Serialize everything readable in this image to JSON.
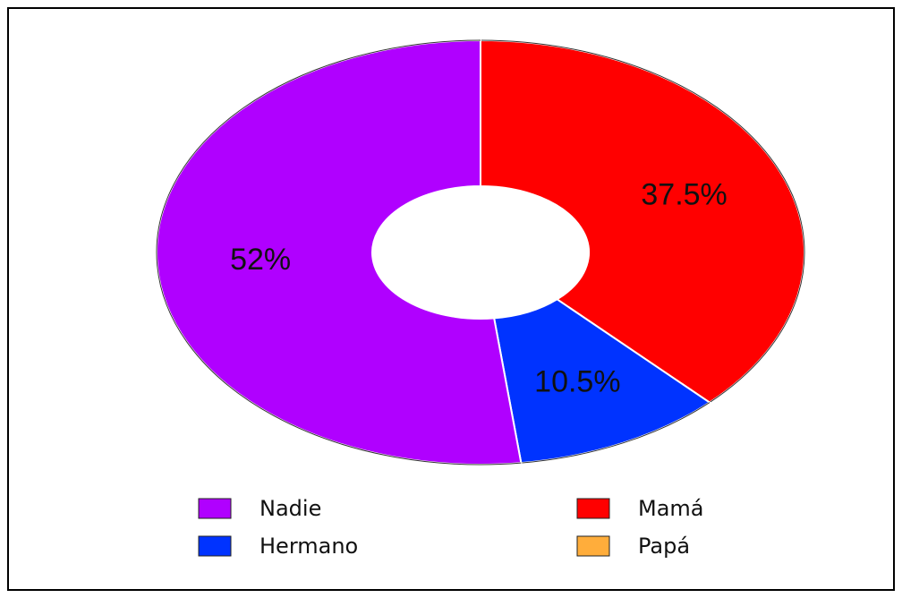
{
  "chart_data": {
    "type": "donut",
    "categories": [
      "Nadie",
      "Mamá",
      "Hermano",
      "Papá"
    ],
    "values": [
      52,
      37.5,
      10.5,
      0
    ],
    "value_labels": [
      "52%",
      "37.5%",
      "10.5%",
      null
    ],
    "colors": [
      "#b000ff",
      "#ff0000",
      "#0033ff",
      "#ffad3b"
    ],
    "legend": "bottom"
  }
}
